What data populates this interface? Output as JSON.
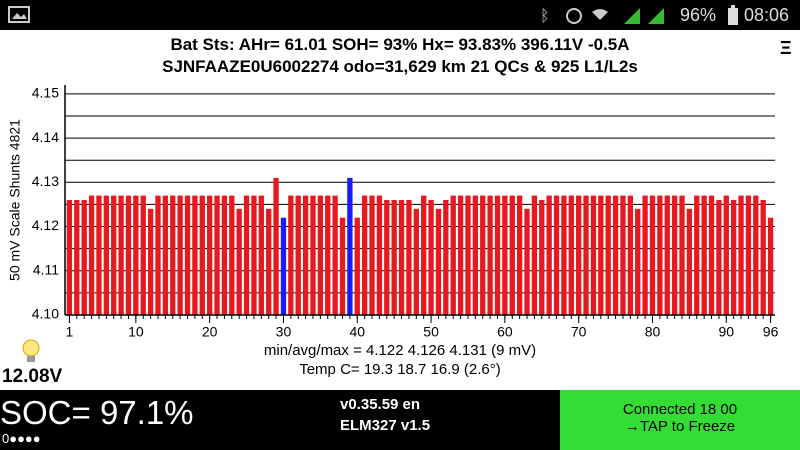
{
  "status_bar": {
    "battery": "96%",
    "time": "08:06"
  },
  "header": {
    "line1": "Bat Sts:  AHr= 61.01  SOH= 93%   Hx= 93.83%   396.11V -0.5A",
    "line2": "SJNFAAZE0U6002274 odo=31,629 km  21 QCs  &  925 L1/L2s",
    "menu": "Ξ"
  },
  "chart_data": {
    "type": "bar",
    "ylabel": "50 mV Scale   Shunts 4821",
    "x": [
      1,
      2,
      3,
      4,
      5,
      6,
      7,
      8,
      9,
      10,
      11,
      12,
      13,
      14,
      15,
      16,
      17,
      18,
      19,
      20,
      21,
      22,
      23,
      24,
      25,
      26,
      27,
      28,
      29,
      30,
      31,
      32,
      33,
      34,
      35,
      36,
      37,
      38,
      39,
      40,
      41,
      42,
      43,
      44,
      45,
      46,
      47,
      48,
      49,
      50,
      51,
      52,
      53,
      54,
      55,
      56,
      57,
      58,
      59,
      60,
      61,
      62,
      63,
      64,
      65,
      66,
      67,
      68,
      69,
      70,
      71,
      72,
      73,
      74,
      75,
      76,
      77,
      78,
      79,
      80,
      81,
      82,
      83,
      84,
      85,
      86,
      87,
      88,
      89,
      90,
      91,
      92,
      93,
      94,
      95,
      96
    ],
    "values": [
      4.126,
      4.126,
      4.126,
      4.127,
      4.127,
      4.127,
      4.127,
      4.127,
      4.127,
      4.127,
      4.127,
      4.124,
      4.127,
      4.127,
      4.127,
      4.127,
      4.127,
      4.127,
      4.127,
      4.127,
      4.127,
      4.127,
      4.127,
      4.124,
      4.127,
      4.127,
      4.127,
      4.124,
      4.131,
      4.122,
      4.127,
      4.127,
      4.127,
      4.127,
      4.127,
      4.127,
      4.127,
      4.122,
      4.131,
      4.122,
      4.127,
      4.127,
      4.127,
      4.126,
      4.126,
      4.126,
      4.126,
      4.124,
      4.127,
      4.126,
      4.124,
      4.126,
      4.127,
      4.127,
      4.127,
      4.127,
      4.127,
      4.127,
      4.127,
      4.127,
      4.127,
      4.127,
      4.124,
      4.127,
      4.126,
      4.127,
      4.127,
      4.127,
      4.127,
      4.127,
      4.127,
      4.127,
      4.127,
      4.127,
      4.127,
      4.127,
      4.127,
      4.124,
      4.127,
      4.127,
      4.127,
      4.127,
      4.127,
      4.127,
      4.124,
      4.127,
      4.127,
      4.127,
      4.126,
      4.127,
      4.126,
      4.127,
      4.127,
      4.127,
      4.126,
      4.122
    ],
    "color": "#e8191e",
    "highlight_color": "#1a1aff",
    "highlight_x": [
      30,
      39
    ],
    "xlim": [
      0.4,
      96.6
    ],
    "xticks": [
      1,
      10,
      20,
      30,
      40,
      50,
      60,
      70,
      80,
      90,
      96
    ],
    "ylim": [
      4.1,
      4.152
    ],
    "yticks": [
      {
        "value": 4.1,
        "label": "4.10"
      },
      {
        "value": 4.11,
        "label": "4.11"
      },
      {
        "value": 4.12,
        "label": "4.12"
      },
      {
        "value": 4.13,
        "label": "4.13"
      },
      {
        "value": 4.14,
        "label": "4.14"
      },
      {
        "value": 4.15,
        "label": "4.15"
      }
    ],
    "minor_grid": [
      4.105,
      4.115,
      4.125,
      4.135,
      4.145
    ],
    "grid": true
  },
  "stats": {
    "minmax": "min/avg/max = 4.122 4.126 4.131  (9 mV)",
    "temp": "Temp C= 19.3  18.7  16.9  (2.6°)",
    "voltage": "12.08V"
  },
  "footer": {
    "soc": "SOC= 97.1%",
    "dots": "0●●●●",
    "version": "v0.35.59 en",
    "adapter": "ELM327 v1.5",
    "connected": "Connected 18 00",
    "tap": "→TAP to Freeze"
  }
}
